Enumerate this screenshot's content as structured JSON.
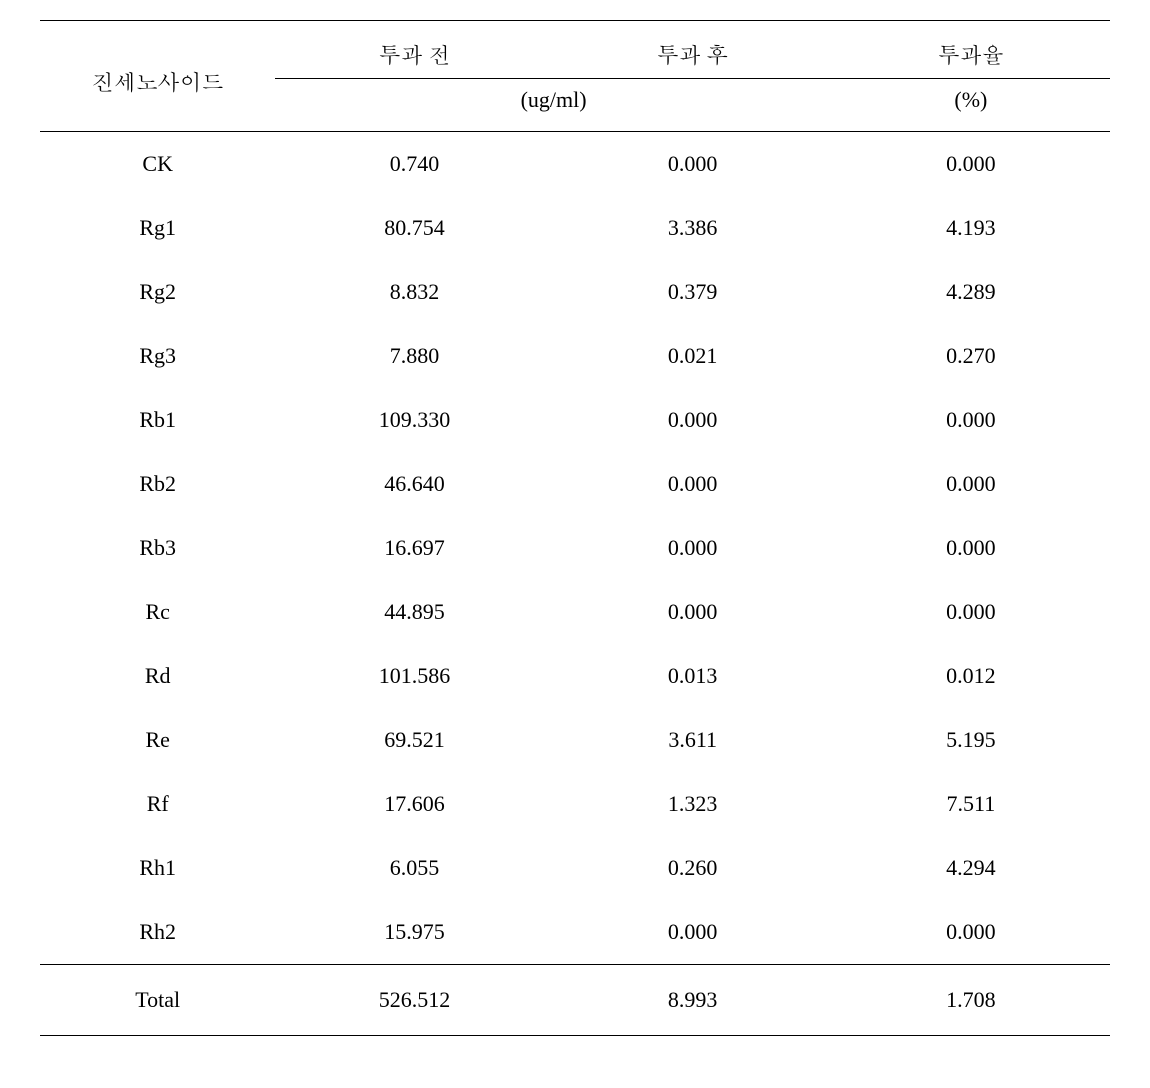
{
  "table": {
    "headers": {
      "label": "진세노사이드",
      "before": "투과 전",
      "after": "투과 후",
      "rate": "투과율",
      "unit_concentration": "(ug/ml)",
      "unit_percent": "(%)"
    },
    "rows": [
      {
        "name": "CK",
        "before": "0.740",
        "after": "0.000",
        "rate": "0.000"
      },
      {
        "name": "Rg1",
        "before": "80.754",
        "after": "3.386",
        "rate": "4.193"
      },
      {
        "name": "Rg2",
        "before": "8.832",
        "after": "0.379",
        "rate": "4.289"
      },
      {
        "name": "Rg3",
        "before": "7.880",
        "after": "0.021",
        "rate": "0.270"
      },
      {
        "name": "Rb1",
        "before": "109.330",
        "after": "0.000",
        "rate": "0.000"
      },
      {
        "name": "Rb2",
        "before": "46.640",
        "after": "0.000",
        "rate": "0.000"
      },
      {
        "name": "Rb3",
        "before": "16.697",
        "after": "0.000",
        "rate": "0.000"
      },
      {
        "name": "Rc",
        "before": "44.895",
        "after": "0.000",
        "rate": "0.000"
      },
      {
        "name": "Rd",
        "before": "101.586",
        "after": "0.013",
        "rate": "0.012"
      },
      {
        "name": "Re",
        "before": "69.521",
        "after": "3.611",
        "rate": "5.195"
      },
      {
        "name": "Rf",
        "before": "17.606",
        "after": "1.323",
        "rate": "7.511"
      },
      {
        "name": "Rh1",
        "before": "6.055",
        "after": "0.260",
        "rate": "4.294"
      },
      {
        "name": "Rh2",
        "before": "15.975",
        "after": "0.000",
        "rate": "0.000"
      }
    ],
    "total": {
      "label": "Total",
      "before": "526.512",
      "after": "8.993",
      "rate": "1.708"
    },
    "styling": {
      "font_size": 22,
      "font_family": "Times New Roman / Batang serif",
      "text_color": "#000000",
      "background_color": "#ffffff",
      "border_color": "#000000",
      "outer_border_width": 1.5,
      "inner_border_width": 1,
      "row_padding_v": 19,
      "column_widths_percent": [
        22,
        26,
        26,
        26
      ],
      "text_align": "center"
    }
  }
}
